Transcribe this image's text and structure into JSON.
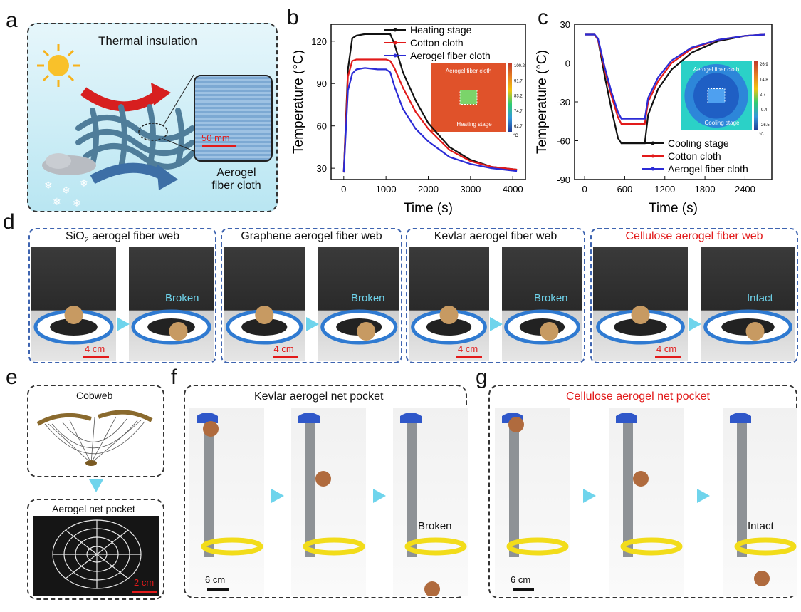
{
  "panels": {
    "a": "a",
    "b": "b",
    "c": "c",
    "d": "d",
    "e": "e",
    "f": "f",
    "g": "g"
  },
  "panel_a": {
    "title": "Thermal insulation",
    "scale": "50 mm",
    "caption_line1": "Aerogel",
    "caption_line2": "fiber cloth"
  },
  "panel_d": {
    "webs": [
      {
        "title_pre": "SiO",
        "title_sub": "2",
        "title_post": " aerogel fiber web",
        "scale": "4 cm",
        "result": "Broken"
      },
      {
        "title_pre": "Graphene aerogel fiber web",
        "title_sub": "",
        "title_post": "",
        "scale": "4 cm",
        "result": "Broken"
      },
      {
        "title_pre": "Kevlar aerogel fiber web",
        "title_sub": "",
        "title_post": "",
        "scale": "4 cm",
        "result": "Broken"
      },
      {
        "title_pre": "Cellulose aerogel fiber web",
        "title_sub": "",
        "title_post": "",
        "scale": "4 cm",
        "result": "Intact"
      }
    ]
  },
  "panel_e": {
    "top": "Cobweb",
    "bottom": "Aerogel net pocket",
    "scale": "2 cm"
  },
  "panel_f": {
    "title": "Kevlar aerogel net pocket",
    "scale": "6 cm",
    "result": "Broken"
  },
  "panel_g": {
    "title": "Cellulose aerogel net pocket",
    "scale": "6 cm",
    "result": "Intact"
  },
  "chart_data": [
    {
      "type": "line",
      "xlabel": "Time (s)",
      "ylabel": "Temperature (°C)",
      "xlim": [
        -300,
        4300
      ],
      "ylim": [
        22,
        132
      ],
      "xticks": [
        0,
        1000,
        2000,
        3000,
        4000
      ],
      "yticks": [
        30,
        60,
        90,
        120
      ],
      "legend": "top-right",
      "series": [
        {
          "name": "Heating stage",
          "color": "#111111",
          "x": [
            0,
            100,
            200,
            300,
            500,
            800,
            1000,
            1100,
            1200,
            1400,
            1700,
            2000,
            2500,
            3000,
            3500,
            4100
          ],
          "y": [
            27,
            100,
            122,
            124,
            125,
            125,
            125,
            125,
            118,
            98,
            78,
            62,
            45,
            36,
            31,
            29
          ]
        },
        {
          "name": "Cotton cloth",
          "color": "#e21a1a",
          "x": [
            0,
            100,
            200,
            300,
            500,
            800,
            1000,
            1100,
            1200,
            1400,
            1700,
            2000,
            2500,
            3000,
            3500,
            4100
          ],
          "y": [
            27,
            95,
            106,
            107,
            107,
            107,
            107,
            106,
            101,
            87,
            70,
            58,
            43,
            35,
            31,
            29
          ]
        },
        {
          "name": "Aerogel fiber cloth",
          "color": "#2b2bd6",
          "x": [
            0,
            100,
            200,
            300,
            500,
            800,
            1000,
            1100,
            1200,
            1400,
            1700,
            2000,
            2500,
            3000,
            3500,
            4100
          ],
          "y": [
            27,
            85,
            97,
            100,
            101,
            100,
            100,
            98,
            88,
            72,
            58,
            49,
            38,
            33,
            30,
            28
          ]
        }
      ],
      "inset": {
        "label_top": "Aerogel fiber cloth",
        "label_bottom": "Heating stage",
        "ticks": [
          "100.2",
          "91.7",
          "83.2",
          "74.7",
          "62.7"
        ],
        "unit": "°C"
      }
    },
    {
      "type": "line",
      "xlabel": "Time (s)",
      "ylabel": "Temperature (°C)",
      "xlim": [
        -150,
        2800
      ],
      "ylim": [
        -90,
        30
      ],
      "xticks": [
        0,
        600,
        1200,
        1800,
        2400
      ],
      "yticks": [
        -90,
        -60,
        -30,
        0,
        30
      ],
      "legend": "bottom-right",
      "series": [
        {
          "name": "Cooling stage",
          "color": "#111111",
          "x": [
            0,
            150,
            200,
            300,
            400,
            500,
            550,
            700,
            900,
            950,
            1100,
            1300,
            1600,
            2000,
            2400,
            2700
          ],
          "y": [
            22,
            22,
            18,
            -10,
            -35,
            -58,
            -62,
            -62,
            -62,
            -40,
            -20,
            -5,
            8,
            17,
            21,
            22
          ]
        },
        {
          "name": "Cotton cloth",
          "color": "#e21a1a",
          "x": [
            0,
            150,
            200,
            300,
            400,
            500,
            550,
            700,
            900,
            950,
            1100,
            1300,
            1600,
            2000,
            2400,
            2700
          ],
          "y": [
            22,
            22,
            18,
            -5,
            -25,
            -42,
            -47,
            -47,
            -47,
            -30,
            -14,
            0,
            11,
            18,
            21,
            22
          ]
        },
        {
          "name": "Aerogel fiber cloth",
          "color": "#2b2bd6",
          "x": [
            0,
            150,
            200,
            300,
            400,
            500,
            550,
            700,
            900,
            950,
            1100,
            1300,
            1600,
            2000,
            2400,
            2700
          ],
          "y": [
            22,
            22,
            19,
            -3,
            -22,
            -38,
            -43,
            -43,
            -43,
            -27,
            -11,
            2,
            12,
            18,
            21,
            22
          ]
        }
      ],
      "inset": {
        "label_top": "Aerogel fiber cloth",
        "label_bottom": "Cooling stage",
        "ticks": [
          "26.9",
          "14.8",
          "2.7",
          "-9.4",
          "-26.5"
        ],
        "unit": "°C"
      }
    }
  ]
}
